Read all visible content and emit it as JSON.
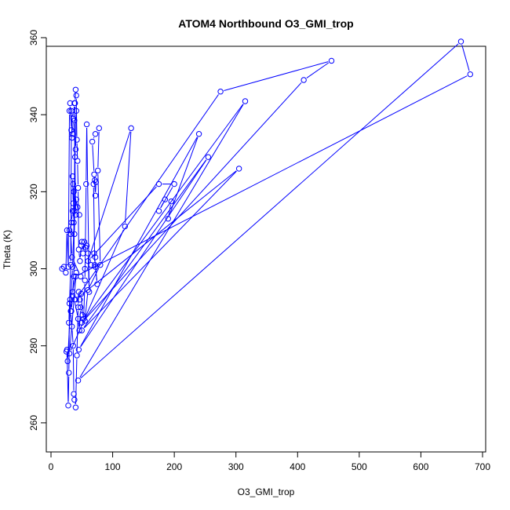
{
  "chart_data": {
    "type": "line",
    "title": "ATOM4 Northbound O3_GMI_trop",
    "xlabel": "O3_GMI_trop",
    "ylabel": "Theta (K)",
    "xlim": [
      0,
      700
    ],
    "ylim": [
      250,
      360
    ],
    "xticks": [
      0,
      100,
      200,
      300,
      400,
      500,
      600,
      700
    ],
    "yticks": [
      260,
      280,
      300,
      320,
      340,
      360
    ],
    "series_color": "#0000ff",
    "grid": false,
    "legend": "none",
    "series": [
      {
        "points": [
          [
            18,
            300
          ],
          [
            21,
            300.5
          ],
          [
            24,
            299
          ],
          [
            26,
            310
          ],
          [
            28,
            300.5
          ],
          [
            30,
            341
          ],
          [
            31,
            343
          ],
          [
            33,
            336
          ],
          [
            32,
            301
          ],
          [
            29,
            286
          ],
          [
            31,
            292
          ],
          [
            33,
            289
          ],
          [
            35,
            293
          ],
          [
            37,
            298
          ],
          [
            39,
            343
          ],
          [
            40,
            346.5
          ],
          [
            41,
            345
          ],
          [
            42,
            333.5
          ],
          [
            43,
            328
          ],
          [
            44,
            321
          ],
          [
            45,
            305
          ],
          [
            47,
            302
          ],
          [
            49,
            306
          ],
          [
            50,
            307
          ],
          [
            52,
            304
          ],
          [
            54,
            307
          ],
          [
            56,
            305.5
          ],
          [
            58,
            306
          ],
          [
            60,
            304
          ],
          [
            62,
            294
          ],
          [
            58,
            337.5
          ],
          [
            57,
            322
          ],
          [
            55,
            297
          ],
          [
            53,
            287
          ],
          [
            51,
            288
          ],
          [
            49,
            293.5
          ],
          [
            47,
            292
          ],
          [
            45,
            294
          ],
          [
            44,
            290
          ],
          [
            42,
            277.5
          ],
          [
            40,
            264
          ],
          [
            38,
            266
          ],
          [
            37,
            267.5
          ],
          [
            36,
            280
          ],
          [
            34,
            285
          ],
          [
            32,
            289
          ],
          [
            30,
            291
          ],
          [
            29,
            273
          ],
          [
            28,
            264.5
          ],
          [
            26,
            279
          ],
          [
            25,
            278.5
          ],
          [
            27,
            276
          ],
          [
            35,
            300.5
          ],
          [
            38,
            315
          ],
          [
            41,
            318
          ],
          [
            43,
            316
          ],
          [
            46,
            314
          ],
          [
            37,
            320
          ],
          [
            36,
            317
          ],
          [
            35,
            324
          ],
          [
            36,
            322
          ],
          [
            37,
            312
          ],
          [
            38,
            309
          ],
          [
            39,
            329
          ],
          [
            40,
            331
          ],
          [
            41,
            341
          ],
          [
            38,
            343
          ],
          [
            36,
            339
          ],
          [
            35,
            335
          ],
          [
            34,
            334
          ],
          [
            33,
            341
          ],
          [
            38,
            338.5
          ],
          [
            40,
            314
          ],
          [
            35,
            315
          ],
          [
            33,
            312
          ],
          [
            30,
            310
          ],
          [
            32,
            309
          ],
          [
            34,
            303
          ],
          [
            48,
            298
          ],
          [
            55,
            300
          ],
          [
            65,
            301
          ],
          [
            72,
            300.5
          ],
          [
            75,
            296
          ],
          [
            70,
            304
          ],
          [
            72,
            303
          ],
          [
            71,
            301
          ],
          [
            69,
            322
          ],
          [
            71,
            323
          ],
          [
            73,
            322.5
          ],
          [
            72,
            319
          ],
          [
            70,
            324.5
          ],
          [
            67,
            333
          ],
          [
            72,
            335
          ],
          [
            78,
            336.5
          ],
          [
            76,
            325.5
          ],
          [
            80,
            301
          ],
          [
            60,
            294.5
          ],
          [
            55,
            286.5
          ],
          [
            48,
            290
          ],
          [
            46,
            284
          ],
          [
            44,
            287
          ],
          [
            38,
            292
          ],
          [
            35,
            294
          ],
          [
            41,
            299
          ],
          [
            30,
            278
          ],
          [
            120,
            311
          ],
          [
            130,
            336.5
          ],
          [
            60,
            302
          ],
          [
            175,
            322
          ],
          [
            200,
            322
          ],
          [
            175,
            315
          ],
          [
            185,
            318
          ],
          [
            195,
            317.5
          ],
          [
            190,
            313
          ],
          [
            240,
            335
          ],
          [
            45,
            279
          ],
          [
            255,
            329
          ],
          [
            50,
            284
          ],
          [
            305,
            326
          ],
          [
            40,
            292
          ],
          [
            275,
            346
          ],
          [
            455,
            354
          ],
          [
            410,
            349
          ],
          [
            50,
            286
          ],
          [
            315,
            343.5
          ],
          [
            44,
            271
          ],
          [
            665,
            359
          ],
          [
            680,
            350.5
          ],
          [
            40,
            298
          ]
        ]
      }
    ]
  }
}
